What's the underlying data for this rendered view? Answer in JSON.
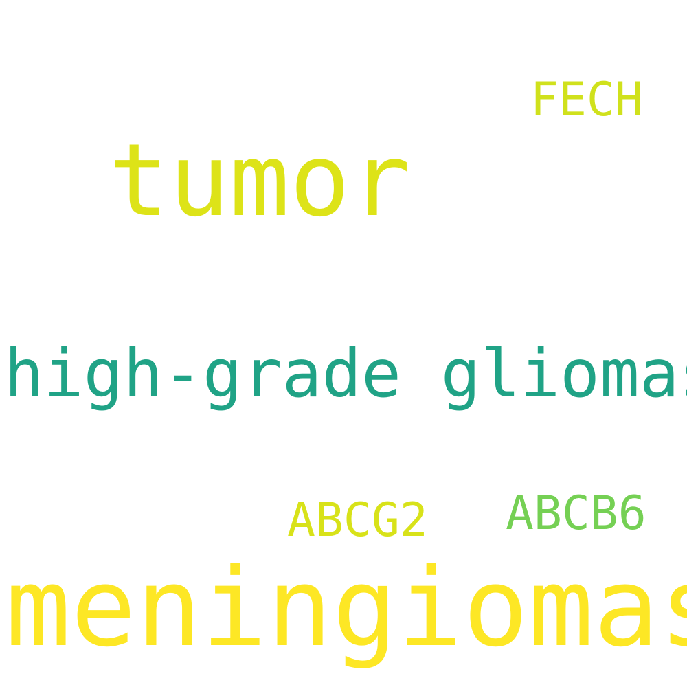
{
  "words": {
    "tumor": {
      "text": "tumor",
      "color": "#dde318"
    },
    "fech": {
      "text": "FECH",
      "color": "#d0e11c"
    },
    "gliomas": {
      "text": "high-grade gliomas",
      "color": "#20a386"
    },
    "abcg2": {
      "text": "ABCG2",
      "color": "#d8e219"
    },
    "abcb6": {
      "text": "ABCB6",
      "color": "#75d054"
    },
    "meningiomas": {
      "text": "meningiomas",
      "color": "#fde725"
    }
  }
}
